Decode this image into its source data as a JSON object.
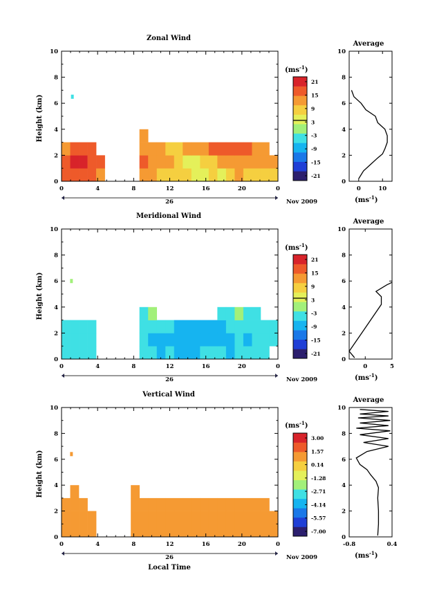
{
  "chart_data": [
    {
      "type": "heatmap",
      "title": "Zonal Wind",
      "ylabel": "Height (km)",
      "ylim": [
        0,
        10
      ],
      "xlim": [
        0,
        24
      ],
      "y_ticks": [
        "0",
        "2",
        "4",
        "6",
        "8",
        "10"
      ],
      "x_ticks": [
        "0",
        "4",
        "8",
        "12",
        "16",
        "20",
        "0"
      ],
      "date_label": "26",
      "month_label": "Nov 2009",
      "colorbar": {
        "unit_main": "(ms",
        "unit_exp": "-1",
        "unit_end": ")",
        "ticks": [
          "21",
          "15",
          "9",
          "3",
          "-3",
          "-9",
          "-15",
          "-21"
        ]
      },
      "grid_values": [
        [
          15,
          17,
          17,
          16,
          12,
          null,
          null,
          null,
          null,
          11,
          10,
          9,
          8,
          9,
          6,
          5,
          4,
          6,
          5,
          7,
          10,
          9,
          9,
          8,
          8
        ],
        [
          16,
          18,
          18,
          17,
          15,
          null,
          null,
          null,
          null,
          14,
          13,
          11,
          10,
          8,
          4,
          2,
          6,
          9,
          11,
          13,
          13,
          12,
          11,
          11,
          10
        ],
        [
          13,
          15,
          16,
          14,
          null,
          null,
          null,
          null,
          null,
          11,
          11,
          10,
          9,
          9,
          10,
          11,
          12,
          14,
          14,
          14,
          15,
          14,
          13,
          12,
          null
        ],
        [
          null,
          null,
          null,
          null,
          null,
          null,
          null,
          null,
          null,
          10,
          null,
          null,
          null,
          null,
          null,
          null,
          null,
          null,
          null,
          null,
          null,
          null,
          null,
          null,
          null
        ]
      ],
      "isolated_points": [
        {
          "x": 1.2,
          "y": 6.5,
          "value": -2
        }
      ],
      "profile": {
        "title": "Average",
        "xlim": [
          -4,
          14
        ],
        "x_ticks": [
          "0",
          "10"
        ],
        "xlabel_main": "(ms",
        "xlabel_exp": "-1",
        "xlabel_end": ")",
        "points": [
          [
            0,
            0.2
          ],
          [
            2,
            0.8
          ],
          [
            5,
            1.3
          ],
          [
            8,
            1.8
          ],
          [
            10,
            2.1
          ],
          [
            11,
            2.5
          ],
          [
            12,
            3.0
          ],
          [
            12,
            3.5
          ],
          [
            11,
            4.0
          ],
          [
            8,
            4.5
          ],
          [
            7,
            5.0
          ],
          [
            3,
            5.5
          ],
          [
            1,
            6.0
          ],
          [
            -2,
            6.5
          ],
          [
            -3,
            7.0
          ]
        ]
      }
    },
    {
      "type": "heatmap",
      "title": "Meridional Wind",
      "ylabel": "Height (km)",
      "ylim": [
        0,
        10
      ],
      "xlim": [
        0,
        24
      ],
      "y_ticks": [
        "0",
        "2",
        "4",
        "6",
        "8",
        "10"
      ],
      "x_ticks": [
        "0",
        "4",
        "8",
        "12",
        "16",
        "20",
        "0"
      ],
      "date_label": "26",
      "month_label": "Nov 2009",
      "colorbar": {
        "unit_main": "(ms",
        "unit_exp": "-1",
        "unit_end": ")",
        "ticks": [
          "21",
          "15",
          "9",
          "3",
          "-3",
          "-9",
          "-15",
          "-21"
        ]
      },
      "grid_values": [
        [
          -4,
          -3,
          -4,
          -3,
          null,
          null,
          null,
          null,
          null,
          -4,
          -5,
          -6,
          -5,
          -6,
          -7,
          -6,
          -5,
          -4,
          -5,
          -6,
          -5,
          -4,
          -5,
          -4,
          null
        ],
        [
          -3,
          -4,
          -3,
          -4,
          null,
          null,
          null,
          null,
          null,
          -5,
          -6,
          -7,
          -8,
          -7,
          -9,
          -8,
          -7,
          -6,
          -7,
          -6,
          -5,
          -6,
          -5,
          -4,
          -4
        ],
        [
          -2,
          -3,
          -4,
          -2,
          null,
          null,
          null,
          null,
          null,
          -4,
          -3,
          -4,
          -5,
          -6,
          -7,
          -8,
          -9,
          -7,
          -6,
          -5,
          -4,
          -5,
          -4,
          -3,
          -4
        ],
        [
          null,
          null,
          null,
          null,
          null,
          null,
          null,
          null,
          null,
          -2,
          -1,
          null,
          null,
          null,
          null,
          null,
          null,
          null,
          -3,
          -2,
          -1,
          -2,
          -3,
          null,
          null
        ]
      ],
      "isolated_points": [
        {
          "x": 1.1,
          "y": 6.0,
          "value": -1
        }
      ],
      "profile": {
        "title": "Average",
        "xlim": [
          -3,
          5
        ],
        "x_ticks": [
          "0",
          "5"
        ],
        "xlabel_main": "(ms",
        "xlabel_exp": "-1",
        "xlabel_end": ")",
        "points": [
          [
            -2,
            0.1
          ],
          [
            -3,
            0.6
          ],
          [
            -2,
            1.2
          ],
          [
            -1,
            1.8
          ],
          [
            0,
            2.4
          ],
          [
            1,
            3.0
          ],
          [
            2,
            3.6
          ],
          [
            3,
            4.2
          ],
          [
            3,
            4.8
          ],
          [
            2,
            5.2
          ],
          [
            4,
            5.7
          ],
          [
            5,
            5.9
          ]
        ]
      }
    },
    {
      "type": "heatmap",
      "title": "Vertical Wind",
      "ylabel": "Height (km)",
      "xlabel": "Local Time",
      "ylim": [
        0,
        10
      ],
      "xlim": [
        0,
        24
      ],
      "y_ticks": [
        "0",
        "2",
        "4",
        "6",
        "8",
        "10"
      ],
      "x_ticks": [
        "0",
        "4",
        "8",
        "12",
        "16",
        "20",
        "0"
      ],
      "date_label": "26",
      "month_label": "Nov 2009",
      "colorbar": {
        "unit_main": "(ms",
        "unit_exp": "-1",
        "unit_end": ")",
        "ticks": [
          "3.00",
          "1.57",
          "0.14",
          "-1.28",
          "-2.71",
          "-4.14",
          "-5.57",
          "-7.00"
        ]
      },
      "grid_values": [
        [
          0.4,
          0.5,
          0.4,
          0.5,
          null,
          null,
          null,
          null,
          0.4,
          0.5,
          0.4,
          0.5,
          0.4,
          0.5,
          0.4,
          0.5,
          0.4,
          0.5,
          0.4,
          0.5,
          0.4,
          0.5,
          0.4,
          0.5,
          0.4
        ],
        [
          0.5,
          0.4,
          0.6,
          0.4,
          null,
          null,
          null,
          null,
          0.5,
          0.4,
          0.5,
          0.4,
          0.5,
          0.4,
          0.5,
          0.4,
          0.5,
          0.4,
          0.5,
          0.4,
          0.5,
          0.4,
          0.5,
          0.4,
          0.5
        ],
        [
          0.4,
          0.5,
          0.4,
          null,
          null,
          null,
          null,
          null,
          0.4,
          0.5,
          0.4,
          0.5,
          0.6,
          0.4,
          0.5,
          0.4,
          0.5,
          0.4,
          0.5,
          0.4,
          0.5,
          0.4,
          0.5,
          0.4,
          null
        ],
        [
          null,
          0.4,
          null,
          null,
          null,
          null,
          null,
          null,
          0.5,
          null,
          null,
          null,
          null,
          null,
          null,
          null,
          null,
          null,
          null,
          null,
          null,
          null,
          null,
          null,
          null
        ]
      ],
      "isolated_points": [
        {
          "x": 1.1,
          "y": 6.4,
          "value": 0.5
        }
      ],
      "profile": {
        "title": "Average",
        "xlim": [
          -0.8,
          0.4
        ],
        "x_ticks": [
          "-0.8",
          "0.4"
        ],
        "xlabel_main": "(ms",
        "xlabel_exp": "-1",
        "xlabel_end": ")",
        "points": [
          [
            0,
            0.1
          ],
          [
            0.02,
            1
          ],
          [
            0.02,
            2
          ],
          [
            0.0,
            3
          ],
          [
            0.02,
            3.8
          ],
          [
            -0.05,
            4.3
          ],
          [
            -0.2,
            4.8
          ],
          [
            -0.3,
            5.2
          ],
          [
            -0.5,
            5.6
          ],
          [
            -0.6,
            6.1
          ],
          [
            -0.3,
            6.6
          ],
          [
            0.3,
            7.0
          ],
          [
            -0.4,
            7.3
          ],
          [
            0.3,
            7.6
          ],
          [
            -0.5,
            7.9
          ],
          [
            0.35,
            8.2
          ],
          [
            -0.6,
            8.4
          ],
          [
            0.3,
            8.6
          ],
          [
            -0.5,
            8.8
          ],
          [
            0.35,
            9.0
          ],
          [
            -0.55,
            9.2
          ],
          [
            0.3,
            9.35
          ],
          [
            -0.5,
            9.5
          ],
          [
            0.3,
            9.7
          ],
          [
            -0.5,
            9.85
          ]
        ]
      }
    }
  ]
}
